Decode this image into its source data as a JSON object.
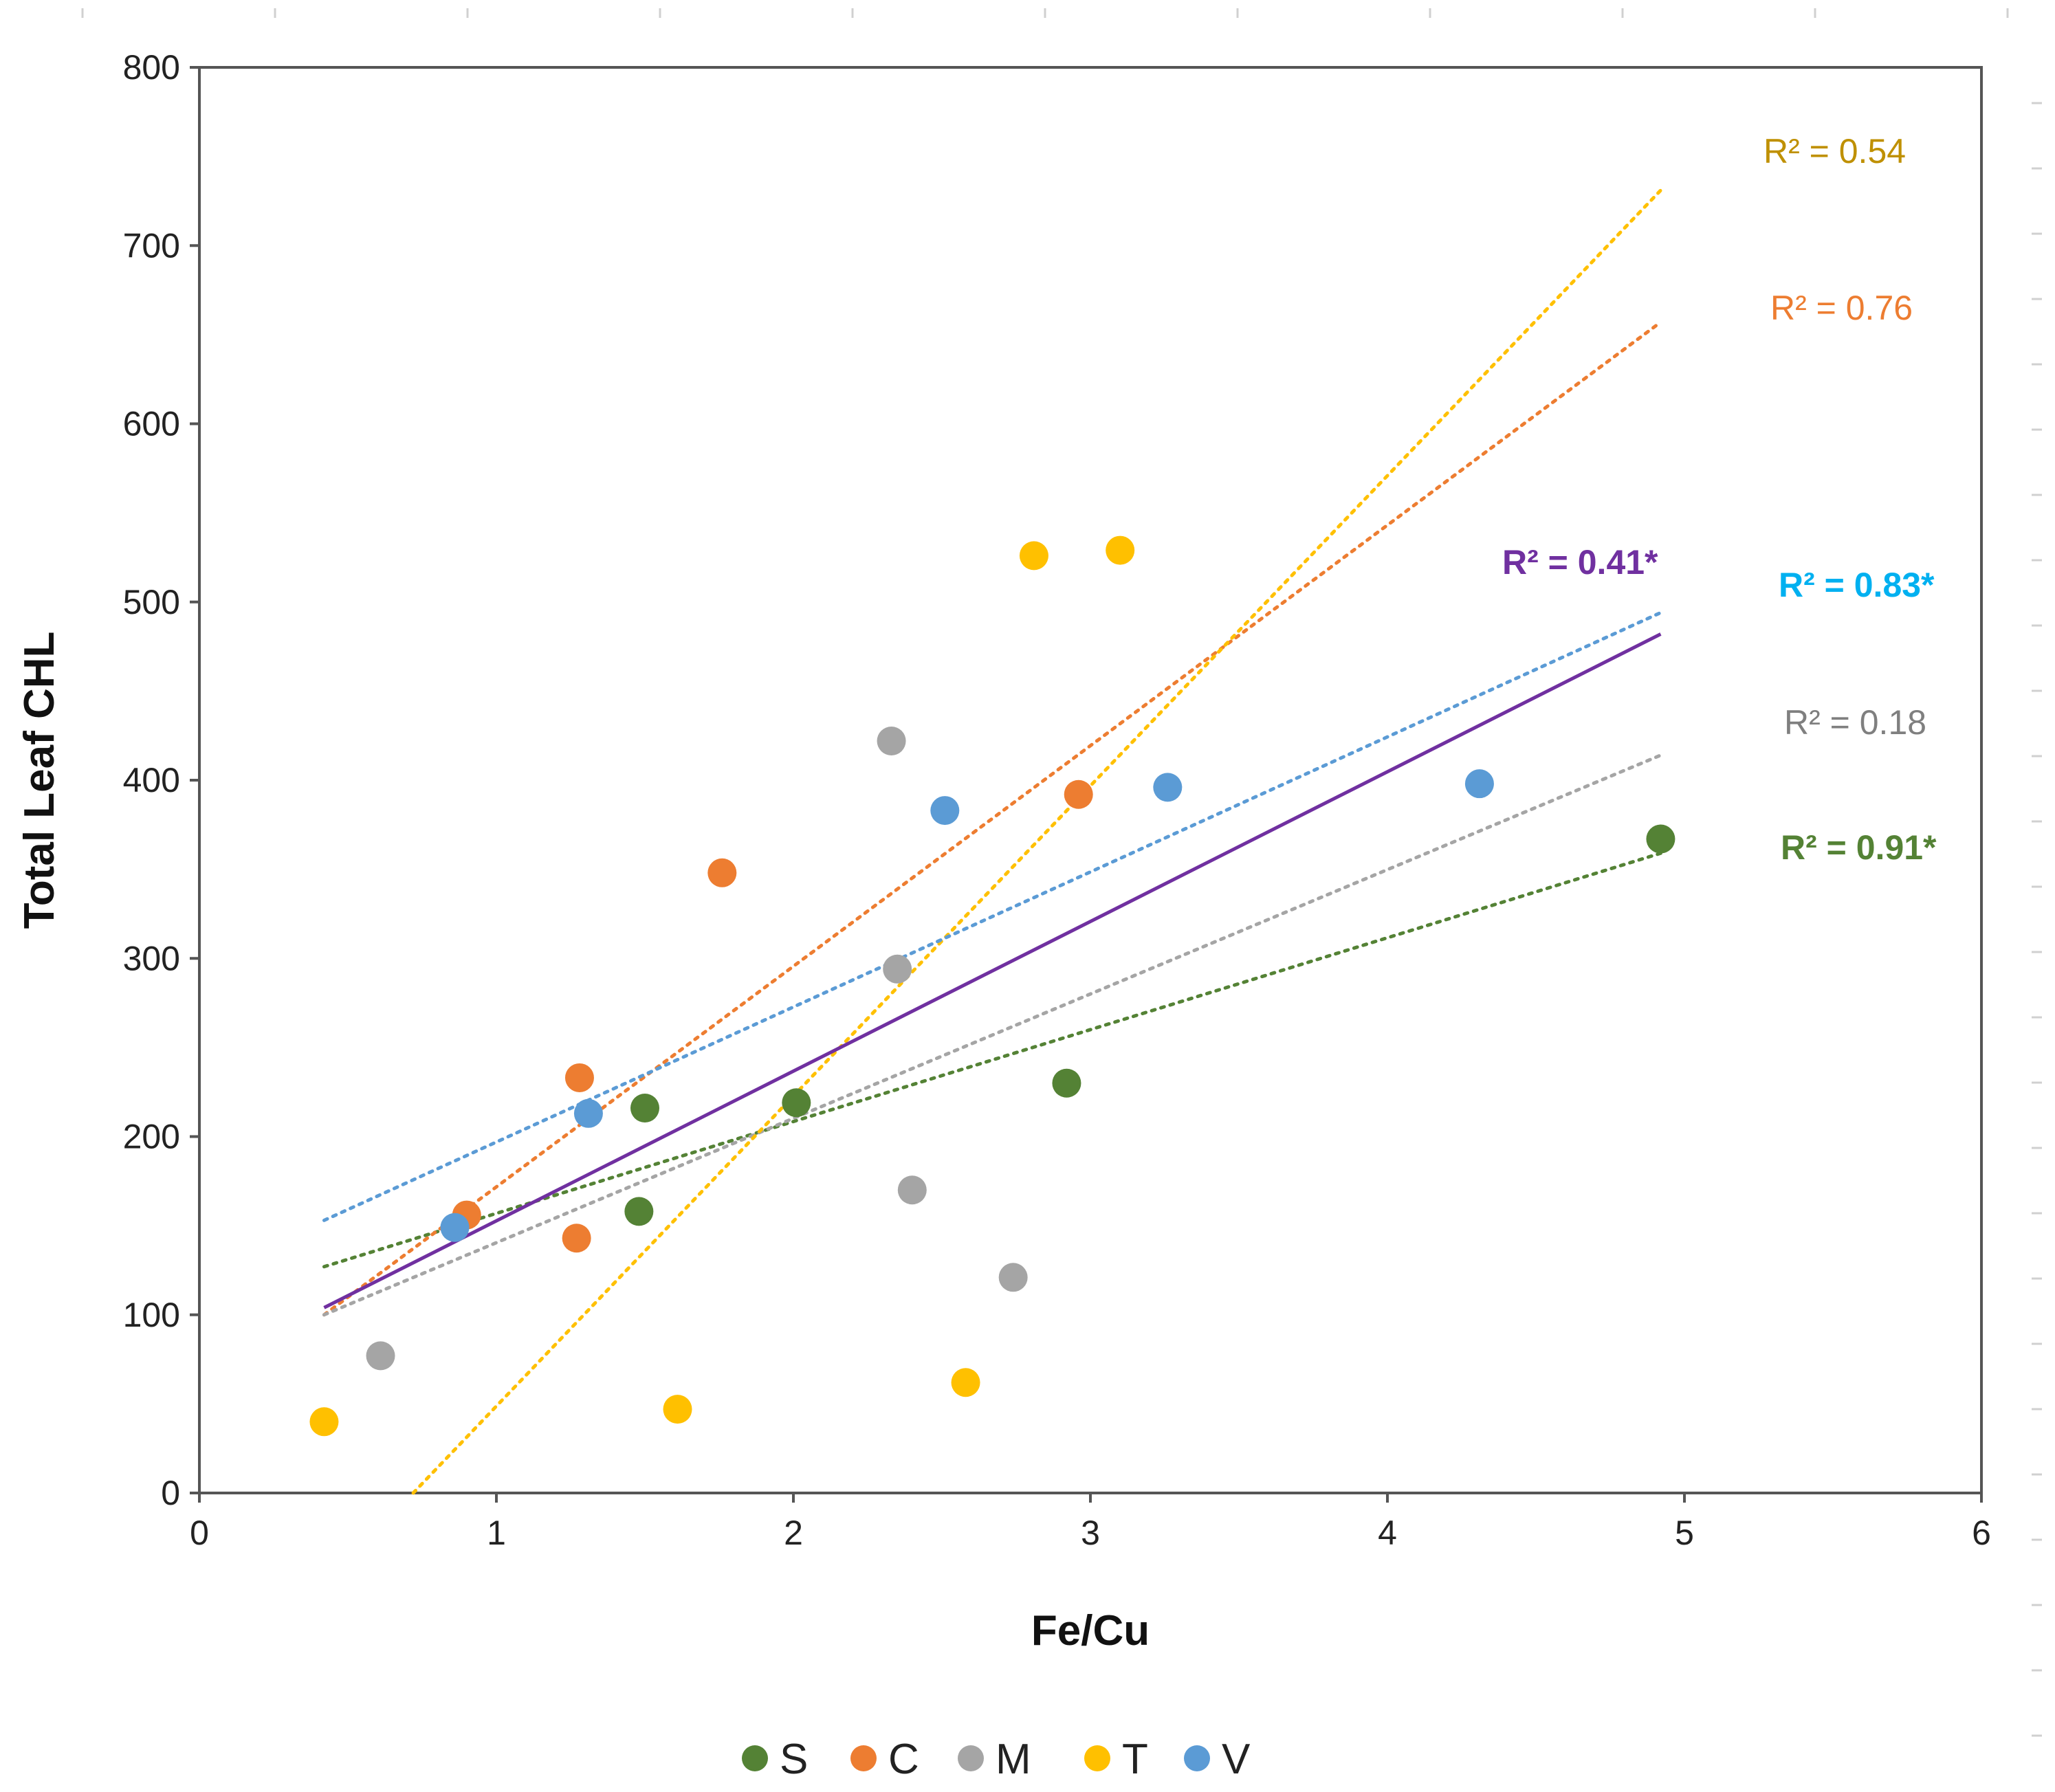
{
  "chart_data": {
    "type": "scatter",
    "xlabel": "Fe/Cu",
    "ylabel": "Total Leaf CHL",
    "xlim": [
      0,
      6
    ],
    "ylim": [
      0,
      800
    ],
    "xticks": [
      0,
      1,
      2,
      3,
      4,
      5,
      6
    ],
    "yticks": [
      0,
      100,
      200,
      300,
      400,
      500,
      600,
      700,
      800
    ],
    "grid": false,
    "legend_position": "bottom-center",
    "series": [
      {
        "name": "S",
        "color": "#548235",
        "points": [
          [
            1.48,
            158
          ],
          [
            1.5,
            216
          ],
          [
            2.01,
            219
          ],
          [
            2.92,
            230
          ],
          [
            4.92,
            367
          ]
        ],
        "trend": {
          "x0": 0.42,
          "y0": 127,
          "x1": 4.92,
          "y1": 359,
          "style": "dotted",
          "r2_text": "R² = 0.91*",
          "r2_bold": true,
          "r2_color": "#548235"
        }
      },
      {
        "name": "C",
        "color": "#ED7D31",
        "points": [
          [
            0.9,
            156
          ],
          [
            1.27,
            143
          ],
          [
            1.28,
            233
          ],
          [
            1.76,
            348
          ],
          [
            2.96,
            392
          ]
        ],
        "trend": {
          "x0": 0.42,
          "y0": 100,
          "x1": 4.92,
          "y1": 657,
          "style": "dotted",
          "r2_text": "R² = 0.76",
          "r2_bold": false,
          "r2_color": "#ED7D31"
        }
      },
      {
        "name": "M",
        "color": "#A5A5A5",
        "points": [
          [
            0.61,
            77
          ],
          [
            2.33,
            422
          ],
          [
            2.35,
            294
          ],
          [
            2.4,
            170
          ],
          [
            2.74,
            121
          ]
        ],
        "trend": {
          "x0": 0.42,
          "y0": 100,
          "x1": 4.92,
          "y1": 414,
          "style": "dotted",
          "r2_text": "R² = 0.18",
          "r2_bold": false,
          "r2_color": "#7F7F7F"
        }
      },
      {
        "name": "T",
        "color": "#FFC000",
        "points": [
          [
            0.42,
            40
          ],
          [
            1.61,
            47
          ],
          [
            2.58,
            62
          ],
          [
            2.81,
            526
          ],
          [
            3.1,
            529
          ]
        ],
        "trend": {
          "x0": 0.72,
          "y0": 0,
          "x1": 4.92,
          "y1": 731,
          "style": "dotted",
          "r2_text": "R² = 0.54",
          "r2_bold": false,
          "r2_color": "#BF9000"
        }
      },
      {
        "name": "V",
        "color": "#5B9BD5",
        "points": [
          [
            0.86,
            149
          ],
          [
            1.31,
            213
          ],
          [
            2.51,
            383
          ],
          [
            3.26,
            396
          ],
          [
            4.31,
            398
          ]
        ],
        "trend": {
          "x0": 0.42,
          "y0": 153,
          "x1": 4.92,
          "y1": 494,
          "style": "dotted",
          "r2_text": "R² = 0.83*",
          "r2_bold": true,
          "r2_color": "#00B0F0"
        }
      }
    ],
    "overall_trend": {
      "x0": 0.42,
      "y0": 104,
      "x1": 4.92,
      "y1": 482,
      "style": "solid",
      "color": "#7030A0",
      "r2_text": "R² = 0.41*",
      "r2_bold": true
    }
  }
}
